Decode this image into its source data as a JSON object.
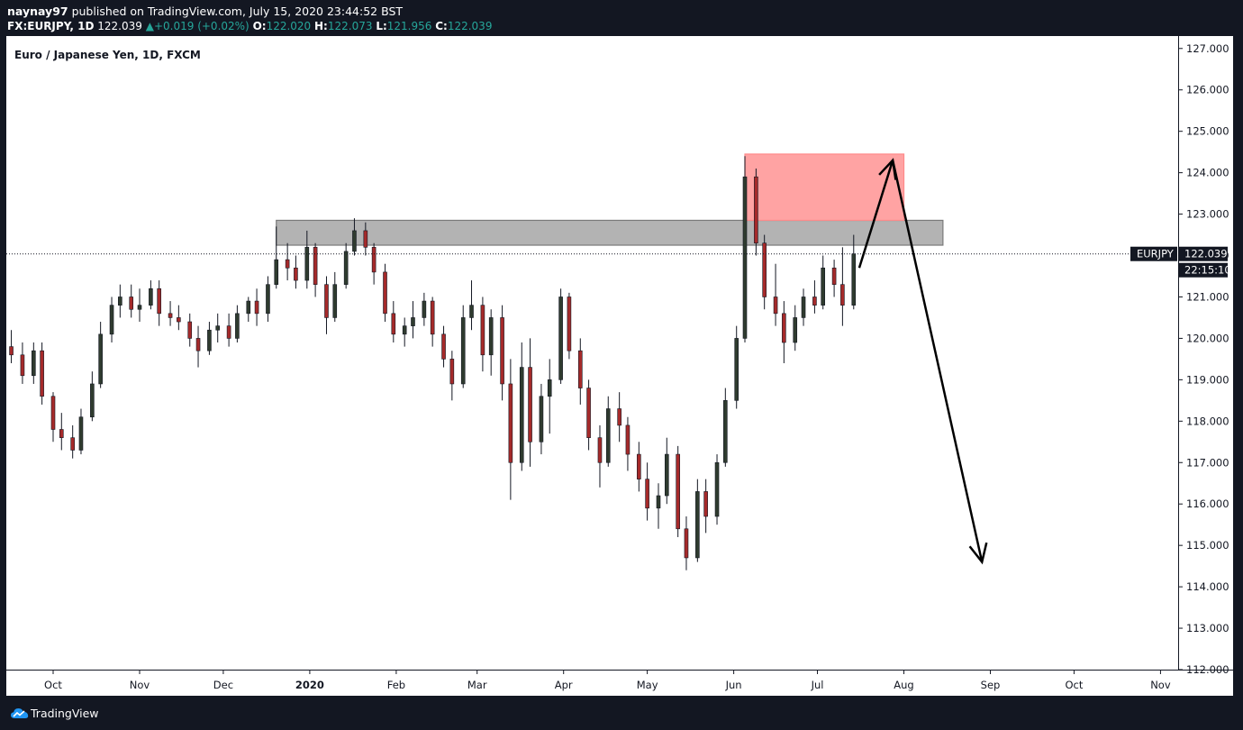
{
  "header": {
    "author": "naynay97",
    "published_text": "published on TradingView.com, July 15, 2020 23:44:52 BST",
    "symbol_line": "FX:EURJPY, 1D",
    "last": "122.039",
    "change": "+0.019 (+0.02%)",
    "o_label": "O:",
    "o_value": "122.020",
    "h_label": "H:",
    "h_value": "122.073",
    "l_label": "L:",
    "l_value": "121.956",
    "c_label": "C:",
    "c_value": "122.039",
    "up_color": "#26a69a"
  },
  "footer": {
    "brand": "TradingView",
    "logo_icon": "tradingview-cloud-icon"
  },
  "colors": {
    "bull": "#2f3b2f",
    "bear": "#a52a2a",
    "zone_gray": "#b3b3b3",
    "zone_red": "#ffa3a3",
    "price_label_bg": "#131722"
  },
  "chart_data": {
    "type": "candlestick",
    "title": "Euro / Japanese Yen, 1D, FXCM",
    "ylim": [
      112,
      127.3
    ],
    "y_ticks": [
      "127.000",
      "126.000",
      "125.000",
      "124.000",
      "123.000",
      "122.000",
      "121.000",
      "120.000",
      "119.000",
      "118.000",
      "117.000",
      "116.000",
      "115.000",
      "114.000",
      "113.000",
      "112.000"
    ],
    "y_tick_values": [
      127,
      126,
      125,
      124,
      123,
      122,
      121,
      120,
      119,
      118,
      117,
      116,
      115,
      114,
      113,
      112
    ],
    "x_ticks": [
      "Oct",
      "Nov",
      "Dec",
      "2020",
      "Feb",
      "Mar",
      "Apr",
      "May",
      "Jun",
      "Jul",
      "Aug",
      "Sep",
      "Oct",
      "Nov"
    ],
    "x_tick_dates": [
      "2019-10-01",
      "2019-11-01",
      "2019-12-01",
      "2020-01-01",
      "2020-02-01",
      "2020-03-01",
      "2020-04-01",
      "2020-05-01",
      "2020-06-01",
      "2020-07-01",
      "2020-08-01",
      "2020-09-01",
      "2020-10-01",
      "2020-11-01"
    ],
    "x_tick_bold": [
      false,
      false,
      false,
      true,
      false,
      false,
      false,
      false,
      false,
      false,
      false,
      false,
      false,
      false
    ],
    "last_price_label": "EURJPY",
    "last_price": "122.039",
    "last_price_value": 122.039,
    "countdown": "22:15:10",
    "candles": [
      {
        "d": "2019-09-16",
        "o": 119.8,
        "h": 120.2,
        "l": 119.4,
        "c": 119.6
      },
      {
        "d": "2019-09-20",
        "o": 119.6,
        "h": 119.9,
        "l": 118.9,
        "c": 119.1
      },
      {
        "d": "2019-09-24",
        "o": 119.1,
        "h": 119.9,
        "l": 118.9,
        "c": 119.7
      },
      {
        "d": "2019-09-27",
        "o": 119.7,
        "h": 119.9,
        "l": 118.4,
        "c": 118.6
      },
      {
        "d": "2019-10-01",
        "o": 118.6,
        "h": 118.7,
        "l": 117.5,
        "c": 117.8
      },
      {
        "d": "2019-10-04",
        "o": 117.8,
        "h": 118.2,
        "l": 117.3,
        "c": 117.6
      },
      {
        "d": "2019-10-08",
        "o": 117.6,
        "h": 117.9,
        "l": 117.1,
        "c": 117.3
      },
      {
        "d": "2019-10-11",
        "o": 117.3,
        "h": 118.3,
        "l": 117.2,
        "c": 118.1
      },
      {
        "d": "2019-10-15",
        "o": 118.1,
        "h": 119.2,
        "l": 118.0,
        "c": 118.9
      },
      {
        "d": "2019-10-18",
        "o": 118.9,
        "h": 120.4,
        "l": 118.8,
        "c": 120.1
      },
      {
        "d": "2019-10-22",
        "o": 120.1,
        "h": 121.0,
        "l": 119.9,
        "c": 120.8
      },
      {
        "d": "2019-10-25",
        "o": 120.8,
        "h": 121.3,
        "l": 120.5,
        "c": 121.0
      },
      {
        "d": "2019-10-29",
        "o": 121.0,
        "h": 121.3,
        "l": 120.5,
        "c": 120.7
      },
      {
        "d": "2019-11-01",
        "o": 120.7,
        "h": 121.2,
        "l": 120.4,
        "c": 120.8
      },
      {
        "d": "2019-11-05",
        "o": 120.8,
        "h": 121.4,
        "l": 120.7,
        "c": 121.2
      },
      {
        "d": "2019-11-08",
        "o": 121.2,
        "h": 121.4,
        "l": 120.3,
        "c": 120.6
      },
      {
        "d": "2019-11-12",
        "o": 120.6,
        "h": 120.9,
        "l": 120.3,
        "c": 120.5
      },
      {
        "d": "2019-11-15",
        "o": 120.5,
        "h": 120.8,
        "l": 120.2,
        "c": 120.4
      },
      {
        "d": "2019-11-19",
        "o": 120.4,
        "h": 120.6,
        "l": 119.8,
        "c": 120.0
      },
      {
        "d": "2019-11-22",
        "o": 120.0,
        "h": 120.3,
        "l": 119.3,
        "c": 119.7
      },
      {
        "d": "2019-11-26",
        "o": 119.7,
        "h": 120.4,
        "l": 119.6,
        "c": 120.2
      },
      {
        "d": "2019-11-29",
        "o": 120.2,
        "h": 120.6,
        "l": 119.9,
        "c": 120.3
      },
      {
        "d": "2019-12-03",
        "o": 120.3,
        "h": 120.6,
        "l": 119.8,
        "c": 120.0
      },
      {
        "d": "2019-12-06",
        "o": 120.0,
        "h": 120.8,
        "l": 119.9,
        "c": 120.6
      },
      {
        "d": "2019-12-10",
        "o": 120.6,
        "h": 121.0,
        "l": 120.4,
        "c": 120.9
      },
      {
        "d": "2019-12-13",
        "o": 120.9,
        "h": 121.2,
        "l": 120.3,
        "c": 120.6
      },
      {
        "d": "2019-12-17",
        "o": 120.6,
        "h": 121.5,
        "l": 120.4,
        "c": 121.3
      },
      {
        "d": "2019-12-20",
        "o": 121.3,
        "h": 122.7,
        "l": 121.2,
        "c": 121.9
      },
      {
        "d": "2019-12-24",
        "o": 121.9,
        "h": 122.3,
        "l": 121.4,
        "c": 121.7
      },
      {
        "d": "2019-12-27",
        "o": 121.7,
        "h": 122.0,
        "l": 121.2,
        "c": 121.4
      },
      {
        "d": "2019-12-31",
        "o": 121.4,
        "h": 122.6,
        "l": 121.2,
        "c": 122.2
      },
      {
        "d": "2020-01-03",
        "o": 122.2,
        "h": 122.3,
        "l": 121.0,
        "c": 121.3
      },
      {
        "d": "2020-01-07",
        "o": 121.3,
        "h": 121.5,
        "l": 120.1,
        "c": 120.5
      },
      {
        "d": "2020-01-10",
        "o": 120.5,
        "h": 121.6,
        "l": 120.4,
        "c": 121.3
      },
      {
        "d": "2020-01-14",
        "o": 121.3,
        "h": 122.3,
        "l": 121.2,
        "c": 122.1
      },
      {
        "d": "2020-01-17",
        "o": 122.1,
        "h": 122.9,
        "l": 122.0,
        "c": 122.6
      },
      {
        "d": "2020-01-21",
        "o": 122.6,
        "h": 122.8,
        "l": 122.0,
        "c": 122.2
      },
      {
        "d": "2020-01-24",
        "o": 122.2,
        "h": 122.3,
        "l": 121.3,
        "c": 121.6
      },
      {
        "d": "2020-01-28",
        "o": 121.6,
        "h": 121.8,
        "l": 120.4,
        "c": 120.6
      },
      {
        "d": "2020-01-31",
        "o": 120.6,
        "h": 120.9,
        "l": 119.9,
        "c": 120.1
      },
      {
        "d": "2020-02-04",
        "o": 120.1,
        "h": 120.5,
        "l": 119.8,
        "c": 120.3
      },
      {
        "d": "2020-02-07",
        "o": 120.3,
        "h": 120.9,
        "l": 120.0,
        "c": 120.5
      },
      {
        "d": "2020-02-11",
        "o": 120.5,
        "h": 121.1,
        "l": 120.3,
        "c": 120.9
      },
      {
        "d": "2020-02-14",
        "o": 120.9,
        "h": 121.0,
        "l": 119.8,
        "c": 120.1
      },
      {
        "d": "2020-02-18",
        "o": 120.1,
        "h": 120.3,
        "l": 119.3,
        "c": 119.5
      },
      {
        "d": "2020-02-21",
        "o": 119.5,
        "h": 119.7,
        "l": 118.5,
        "c": 118.9
      },
      {
        "d": "2020-02-25",
        "o": 118.9,
        "h": 120.8,
        "l": 118.8,
        "c": 120.5
      },
      {
        "d": "2020-02-28",
        "o": 120.5,
        "h": 121.4,
        "l": 120.2,
        "c": 120.8
      },
      {
        "d": "2020-03-03",
        "o": 120.8,
        "h": 121.0,
        "l": 119.2,
        "c": 119.6
      },
      {
        "d": "2020-03-06",
        "o": 119.6,
        "h": 120.7,
        "l": 119.1,
        "c": 120.5
      },
      {
        "d": "2020-03-10",
        "o": 120.5,
        "h": 120.8,
        "l": 118.5,
        "c": 118.9
      },
      {
        "d": "2020-03-13",
        "o": 118.9,
        "h": 119.5,
        "l": 116.1,
        "c": 117.0
      },
      {
        "d": "2020-03-17",
        "o": 117.0,
        "h": 119.9,
        "l": 116.8,
        "c": 119.3
      },
      {
        "d": "2020-03-20",
        "o": 119.3,
        "h": 120.0,
        "l": 116.9,
        "c": 117.5
      },
      {
        "d": "2020-03-24",
        "o": 117.5,
        "h": 118.9,
        "l": 117.2,
        "c": 118.6
      },
      {
        "d": "2020-03-27",
        "o": 118.6,
        "h": 119.5,
        "l": 117.7,
        "c": 119.0
      },
      {
        "d": "2020-03-31",
        "o": 119.0,
        "h": 121.2,
        "l": 118.9,
        "c": 121.0
      },
      {
        "d": "2020-04-03",
        "o": 121.0,
        "h": 121.1,
        "l": 119.5,
        "c": 119.7
      },
      {
        "d": "2020-04-07",
        "o": 119.7,
        "h": 120.0,
        "l": 118.4,
        "c": 118.8
      },
      {
        "d": "2020-04-10",
        "o": 118.8,
        "h": 119.0,
        "l": 117.3,
        "c": 117.6
      },
      {
        "d": "2020-04-14",
        "o": 117.6,
        "h": 117.9,
        "l": 116.4,
        "c": 117.0
      },
      {
        "d": "2020-04-17",
        "o": 117.0,
        "h": 118.6,
        "l": 116.9,
        "c": 118.3
      },
      {
        "d": "2020-04-21",
        "o": 118.3,
        "h": 118.7,
        "l": 117.5,
        "c": 117.9
      },
      {
        "d": "2020-04-24",
        "o": 117.9,
        "h": 118.1,
        "l": 116.8,
        "c": 117.2
      },
      {
        "d": "2020-04-28",
        "o": 117.2,
        "h": 117.5,
        "l": 116.3,
        "c": 116.6
      },
      {
        "d": "2020-05-01",
        "o": 116.6,
        "h": 117.0,
        "l": 115.6,
        "c": 115.9
      },
      {
        "d": "2020-05-05",
        "o": 115.9,
        "h": 116.5,
        "l": 115.4,
        "c": 116.2
      },
      {
        "d": "2020-05-08",
        "o": 116.2,
        "h": 117.6,
        "l": 116.0,
        "c": 117.2
      },
      {
        "d": "2020-05-12",
        "o": 117.2,
        "h": 117.4,
        "l": 115.2,
        "c": 115.4
      },
      {
        "d": "2020-05-15",
        "o": 115.4,
        "h": 115.7,
        "l": 114.4,
        "c": 114.7
      },
      {
        "d": "2020-05-19",
        "o": 114.7,
        "h": 116.6,
        "l": 114.6,
        "c": 116.3
      },
      {
        "d": "2020-05-22",
        "o": 116.3,
        "h": 116.6,
        "l": 115.3,
        "c": 115.7
      },
      {
        "d": "2020-05-26",
        "o": 115.7,
        "h": 117.2,
        "l": 115.5,
        "c": 117.0
      },
      {
        "d": "2020-05-29",
        "o": 117.0,
        "h": 118.8,
        "l": 116.9,
        "c": 118.5
      },
      {
        "d": "2020-06-02",
        "o": 118.5,
        "h": 120.3,
        "l": 118.3,
        "c": 120.0
      },
      {
        "d": "2020-06-05",
        "o": 120.0,
        "h": 124.4,
        "l": 119.9,
        "c": 123.9
      },
      {
        "d": "2020-06-09",
        "o": 123.9,
        "h": 124.1,
        "l": 122.0,
        "c": 122.3
      },
      {
        "d": "2020-06-12",
        "o": 122.3,
        "h": 122.5,
        "l": 120.7,
        "c": 121.0
      },
      {
        "d": "2020-06-16",
        "o": 121.0,
        "h": 121.8,
        "l": 120.3,
        "c": 120.6
      },
      {
        "d": "2020-06-19",
        "o": 120.6,
        "h": 120.9,
        "l": 119.4,
        "c": 119.9
      },
      {
        "d": "2020-06-23",
        "o": 119.9,
        "h": 120.8,
        "l": 119.7,
        "c": 120.5
      },
      {
        "d": "2020-06-26",
        "o": 120.5,
        "h": 121.2,
        "l": 120.3,
        "c": 121.0
      },
      {
        "d": "2020-06-30",
        "o": 121.0,
        "h": 121.4,
        "l": 120.6,
        "c": 120.8
      },
      {
        "d": "2020-07-03",
        "o": 120.8,
        "h": 122.0,
        "l": 120.7,
        "c": 121.7
      },
      {
        "d": "2020-07-07",
        "o": 121.7,
        "h": 121.9,
        "l": 121.0,
        "c": 121.3
      },
      {
        "d": "2020-07-10",
        "o": 121.3,
        "h": 122.2,
        "l": 120.3,
        "c": 120.8
      },
      {
        "d": "2020-07-14",
        "o": 120.8,
        "h": 122.5,
        "l": 120.7,
        "c": 122.039
      }
    ],
    "zones": [
      {
        "from": "2019-12-20",
        "to": "2020-08-15",
        "low": 122.25,
        "high": 122.85,
        "color": "#b3b3b3"
      },
      {
        "from": "2020-06-05",
        "to": "2020-08-01",
        "low": 122.85,
        "high": 124.45,
        "color": "#ffa3a3"
      }
    ],
    "arrows": [
      {
        "from": {
          "d": "2020-07-16",
          "v": 121.7
        },
        "to": {
          "d": "2020-07-28",
          "v": 124.3
        }
      },
      {
        "from": {
          "d": "2020-07-28",
          "v": 124.3
        },
        "to": {
          "d": "2020-08-29",
          "v": 114.6
        }
      }
    ]
  }
}
